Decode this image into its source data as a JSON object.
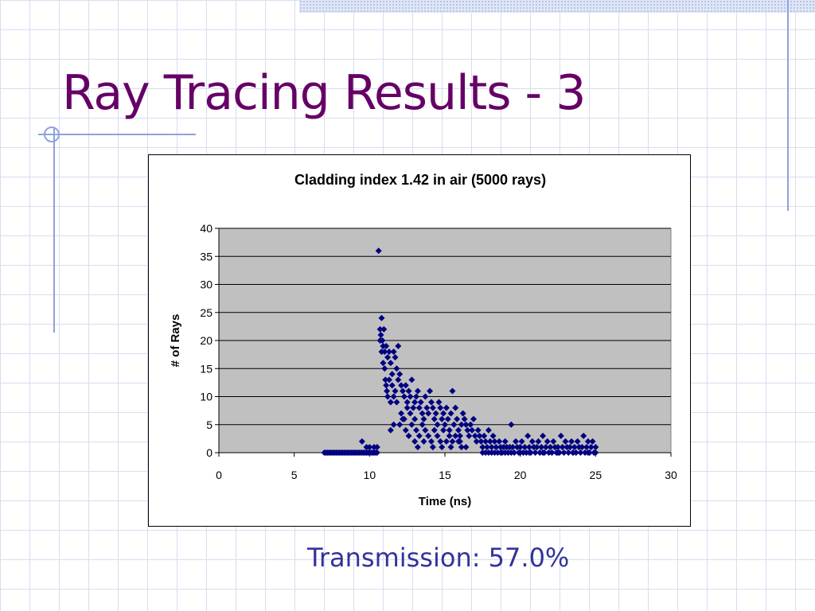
{
  "slide": {
    "title": "Ray Tracing Results - 3",
    "transmission": "Transmission: 57.0%"
  },
  "colors": {
    "title": "#660066",
    "text_accent": "#333399",
    "plot_background": "#c0c0c0",
    "marker": "#000080",
    "decoration": "#8fa3d9"
  },
  "chart_data": {
    "type": "scatter",
    "title": "Cladding index 1.42 in air (5000 rays)",
    "xlabel": "Time (ns)",
    "ylabel": "# of Rays",
    "xlim": [
      0,
      30
    ],
    "ylim": [
      0,
      40
    ],
    "xticks": [
      0,
      5,
      10,
      15,
      20,
      25,
      30
    ],
    "yticks": [
      0,
      5,
      10,
      15,
      20,
      25,
      30,
      35,
      40
    ],
    "grid": "horizontal",
    "marker": "diamond",
    "series": [
      {
        "points": [
          [
            7.0,
            0
          ],
          [
            7.1,
            0
          ],
          [
            7.2,
            0
          ],
          [
            7.3,
            0
          ],
          [
            7.4,
            0
          ],
          [
            7.5,
            0
          ],
          [
            7.6,
            0
          ],
          [
            7.7,
            0
          ],
          [
            7.8,
            0
          ],
          [
            7.9,
            0
          ],
          [
            8.0,
            0
          ],
          [
            8.1,
            0
          ],
          [
            8.2,
            0
          ],
          [
            8.3,
            0
          ],
          [
            8.4,
            0
          ],
          [
            8.5,
            0
          ],
          [
            8.6,
            0
          ],
          [
            8.7,
            0
          ],
          [
            8.8,
            0
          ],
          [
            8.9,
            0
          ],
          [
            9.0,
            0
          ],
          [
            9.1,
            0
          ],
          [
            9.2,
            0
          ],
          [
            9.3,
            0
          ],
          [
            9.4,
            0
          ],
          [
            9.5,
            0
          ],
          [
            9.6,
            0
          ],
          [
            9.7,
            0
          ],
          [
            9.8,
            0
          ],
          [
            9.9,
            0
          ],
          [
            10.0,
            0
          ],
          [
            10.1,
            0
          ],
          [
            10.2,
            0
          ],
          [
            10.3,
            0
          ],
          [
            10.4,
            0
          ],
          [
            10.5,
            0
          ],
          [
            9.5,
            2
          ],
          [
            9.8,
            1
          ],
          [
            10.0,
            1
          ],
          [
            10.3,
            1
          ],
          [
            10.5,
            1
          ],
          [
            10.6,
            36
          ],
          [
            10.7,
            22
          ],
          [
            10.75,
            21
          ],
          [
            10.8,
            24
          ],
          [
            10.85,
            20
          ],
          [
            10.9,
            19
          ],
          [
            10.95,
            22
          ],
          [
            10.7,
            20
          ],
          [
            10.8,
            18
          ],
          [
            10.9,
            16
          ],
          [
            11.0,
            15
          ],
          [
            11.05,
            13
          ],
          [
            11.1,
            12
          ],
          [
            11.15,
            11
          ],
          [
            11.2,
            10
          ],
          [
            11.0,
            18
          ],
          [
            11.1,
            19
          ],
          [
            11.2,
            17
          ],
          [
            11.3,
            18
          ],
          [
            11.4,
            16
          ],
          [
            11.5,
            14
          ],
          [
            11.6,
            18
          ],
          [
            11.7,
            17
          ],
          [
            11.8,
            15
          ],
          [
            11.9,
            19
          ],
          [
            11.3,
            13
          ],
          [
            11.5,
            12
          ],
          [
            11.7,
            11
          ],
          [
            11.9,
            13
          ],
          [
            11.4,
            9
          ],
          [
            11.6,
            10
          ],
          [
            11.8,
            9
          ],
          [
            12.0,
            14
          ],
          [
            12.1,
            12
          ],
          [
            12.2,
            11
          ],
          [
            12.3,
            10
          ],
          [
            12.4,
            12
          ],
          [
            12.5,
            9
          ],
          [
            12.6,
            11
          ],
          [
            12.7,
            10
          ],
          [
            12.8,
            13
          ],
          [
            12.9,
            8
          ],
          [
            13.0,
            9
          ],
          [
            12.1,
            7
          ],
          [
            12.3,
            6
          ],
          [
            12.5,
            8
          ],
          [
            12.7,
            7
          ],
          [
            11.4,
            4
          ],
          [
            11.6,
            5
          ],
          [
            12.0,
            5
          ],
          [
            12.2,
            6
          ],
          [
            12.4,
            4
          ],
          [
            12.6,
            3
          ],
          [
            12.8,
            5
          ],
          [
            13.0,
            6
          ],
          [
            13.1,
            10
          ],
          [
            13.2,
            11
          ],
          [
            13.3,
            8
          ],
          [
            13.4,
            9
          ],
          [
            13.5,
            7
          ],
          [
            13.6,
            6
          ],
          [
            13.7,
            10
          ],
          [
            13.8,
            8
          ],
          [
            13.9,
            7
          ],
          [
            14.0,
            11
          ],
          [
            14.1,
            9
          ],
          [
            14.2,
            8
          ],
          [
            14.3,
            6
          ],
          [
            14.4,
            7
          ],
          [
            14.5,
            5
          ],
          [
            14.6,
            9
          ],
          [
            14.7,
            8
          ],
          [
            14.8,
            6
          ],
          [
            14.9,
            7
          ],
          [
            15.0,
            5
          ],
          [
            15.1,
            8
          ],
          [
            15.2,
            6
          ],
          [
            15.3,
            4
          ],
          [
            15.4,
            7
          ],
          [
            15.5,
            11
          ],
          [
            15.6,
            5
          ],
          [
            15.7,
            8
          ],
          [
            15.8,
            6
          ],
          [
            15.9,
            4
          ],
          [
            16.0,
            3
          ],
          [
            16.1,
            5
          ],
          [
            16.2,
            7
          ],
          [
            13.1,
            4
          ],
          [
            13.3,
            3
          ],
          [
            13.5,
            5
          ],
          [
            13.7,
            4
          ],
          [
            13.9,
            3
          ],
          [
            14.1,
            2
          ],
          [
            14.3,
            4
          ],
          [
            14.5,
            3
          ],
          [
            14.7,
            2
          ],
          [
            14.9,
            4
          ],
          [
            15.1,
            2
          ],
          [
            15.3,
            3
          ],
          [
            15.5,
            2
          ],
          [
            15.7,
            3
          ],
          [
            15.9,
            2
          ],
          [
            16.1,
            1
          ],
          [
            13.0,
            2
          ],
          [
            13.2,
            1
          ],
          [
            13.6,
            2
          ],
          [
            14.2,
            1
          ],
          [
            14.8,
            1
          ],
          [
            15.4,
            1
          ],
          [
            16.0,
            2
          ],
          [
            16.4,
            1
          ],
          [
            16.3,
            6
          ],
          [
            16.4,
            5
          ],
          [
            16.5,
            4
          ],
          [
            16.6,
            3
          ],
          [
            16.7,
            5
          ],
          [
            16.8,
            4
          ],
          [
            16.9,
            6
          ],
          [
            17.0,
            3
          ],
          [
            17.1,
            2
          ],
          [
            17.2,
            4
          ],
          [
            17.3,
            3
          ],
          [
            17.4,
            2
          ],
          [
            17.5,
            1
          ],
          [
            17.6,
            3
          ],
          [
            17.7,
            2
          ],
          [
            17.8,
            1
          ],
          [
            17.9,
            4
          ],
          [
            18.0,
            2
          ],
          [
            18.1,
            1
          ],
          [
            18.2,
            3
          ],
          [
            18.3,
            2
          ],
          [
            18.4,
            1
          ],
          [
            18.5,
            0
          ],
          [
            18.6,
            2
          ],
          [
            18.7,
            1
          ],
          [
            18.8,
            0
          ],
          [
            18.9,
            1
          ],
          [
            19.0,
            2
          ],
          [
            19.1,
            1
          ],
          [
            19.2,
            0
          ],
          [
            19.3,
            1
          ],
          [
            19.4,
            5
          ],
          [
            19.5,
            1
          ],
          [
            19.6,
            0
          ],
          [
            19.7,
            2
          ],
          [
            19.8,
            1
          ],
          [
            19.9,
            0
          ],
          [
            20.0,
            1
          ],
          [
            20.1,
            2
          ],
          [
            20.2,
            0
          ],
          [
            17.5,
            0
          ],
          [
            17.7,
            0
          ],
          [
            17.9,
            0
          ],
          [
            18.1,
            0
          ],
          [
            18.3,
            0
          ],
          [
            18.7,
            0
          ],
          [
            19.0,
            0
          ],
          [
            19.4,
            0
          ],
          [
            20.3,
            1
          ],
          [
            20.4,
            0
          ],
          [
            20.5,
            3
          ],
          [
            20.6,
            1
          ],
          [
            20.7,
            0
          ],
          [
            20.8,
            2
          ],
          [
            20.9,
            1
          ],
          [
            21.0,
            0
          ],
          [
            21.1,
            1
          ],
          [
            21.2,
            2
          ],
          [
            21.3,
            0
          ],
          [
            21.4,
            1
          ],
          [
            21.5,
            3
          ],
          [
            21.6,
            0
          ],
          [
            21.7,
            1
          ],
          [
            21.8,
            2
          ],
          [
            21.9,
            0
          ],
          [
            22.0,
            1
          ],
          [
            22.1,
            0
          ],
          [
            22.2,
            2
          ],
          [
            22.3,
            1
          ],
          [
            22.4,
            0
          ],
          [
            22.5,
            1
          ],
          [
            22.6,
            0
          ],
          [
            22.7,
            3
          ],
          [
            22.8,
            1
          ],
          [
            22.9,
            0
          ],
          [
            23.0,
            2
          ],
          [
            23.1,
            1
          ],
          [
            23.2,
            0
          ],
          [
            23.3,
            1
          ],
          [
            23.4,
            2
          ],
          [
            23.5,
            0
          ],
          [
            23.6,
            1
          ],
          [
            23.7,
            0
          ],
          [
            23.8,
            2
          ],
          [
            23.9,
            1
          ],
          [
            24.0,
            0
          ],
          [
            24.1,
            1
          ],
          [
            24.2,
            3
          ],
          [
            24.3,
            0
          ],
          [
            24.4,
            1
          ],
          [
            24.5,
            2
          ],
          [
            24.6,
            0
          ],
          [
            24.7,
            1
          ],
          [
            24.8,
            2
          ],
          [
            24.9,
            0
          ],
          [
            25.0,
            1
          ],
          [
            20.0,
            0
          ],
          [
            20.6,
            0
          ],
          [
            21.5,
            0
          ],
          [
            22.5,
            0
          ],
          [
            23.5,
            0
          ],
          [
            24.5,
            0
          ],
          [
            25.0,
            0
          ]
        ]
      }
    ]
  }
}
